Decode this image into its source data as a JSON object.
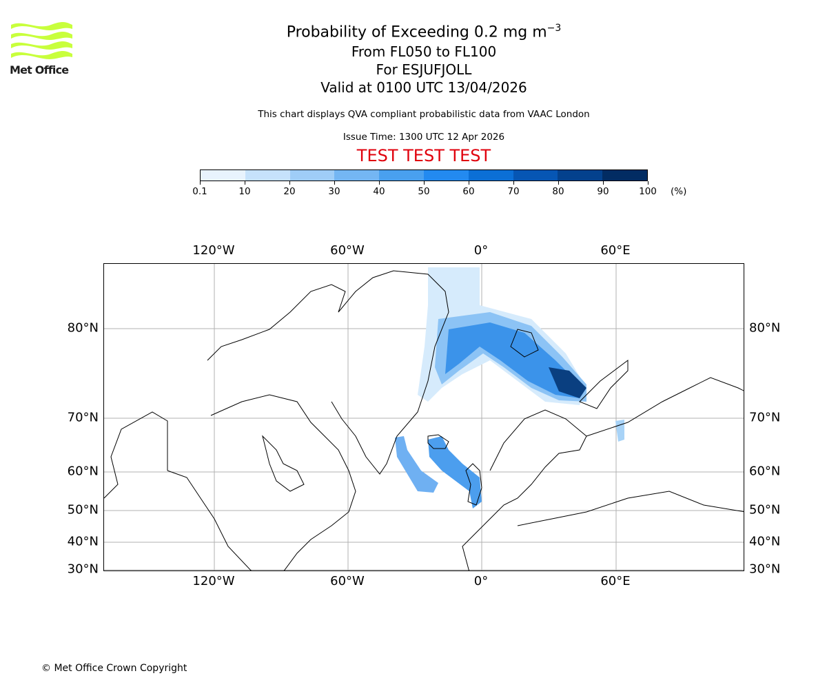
{
  "logo": {
    "text": "Met Office"
  },
  "title": {
    "line1_main": "Probability of Exceeding 0.2 mg m",
    "line1_sup": "−3",
    "line2": "From FL050 to FL100",
    "line3": "For ESJUFJOLL",
    "line4": "Valid at 0100 UTC 13/04/2026"
  },
  "subtitle": "This chart displays QVA compliant probabilistic data from VAAC London",
  "issue_time": "Issue Time: 1300 UTC 12 Apr 2026",
  "test_banner": "TEST TEST TEST",
  "colorbar": {
    "ticks": [
      "0.1",
      "10",
      "20",
      "30",
      "40",
      "50",
      "60",
      "70",
      "80",
      "90",
      "100"
    ],
    "unit": "(%)",
    "colors": [
      "#e8f3fd",
      "#c6e2fb",
      "#9fcdf7",
      "#74b6f3",
      "#49a0ef",
      "#238af0",
      "#0b6fd6",
      "#0656b4",
      "#03418d",
      "#022c63"
    ]
  },
  "map": {
    "lon_labels": [
      "120°W",
      "60°W",
      "0°",
      "60°E"
    ],
    "lat_labels": [
      "80°N",
      "70°N",
      "60°N",
      "50°N",
      "40°N",
      "30°N"
    ]
  },
  "copyright": "© Met Office Crown Copyright"
}
